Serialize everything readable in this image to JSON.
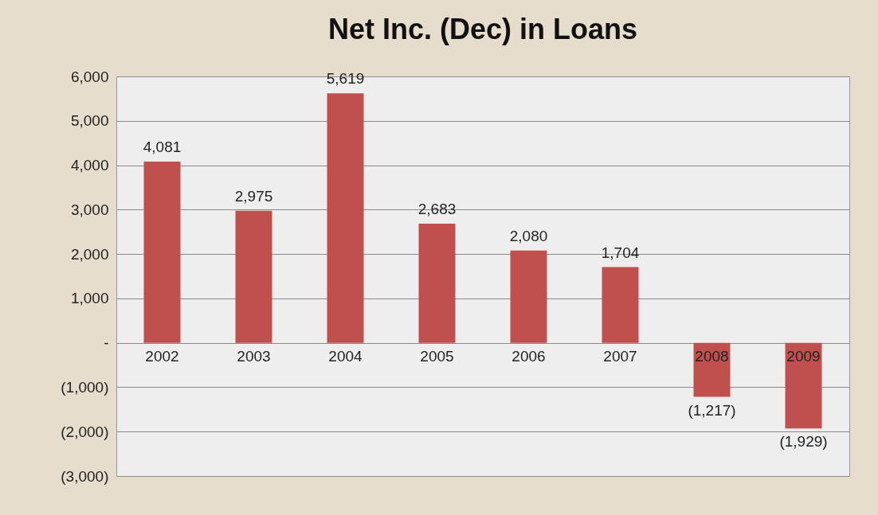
{
  "chart_data": {
    "type": "bar",
    "title": "Net Inc. (Dec) in Loans",
    "categories": [
      "2002",
      "2003",
      "2004",
      "2005",
      "2006",
      "2007",
      "2008",
      "2009"
    ],
    "values": [
      4081,
      2975,
      5619,
      2683,
      2080,
      1704,
      -1217,
      -1929
    ],
    "value_labels": [
      "4,081",
      "2,975",
      "5,619",
      "2,683",
      "2,080",
      "1,704",
      "(1,217)",
      "(1,929)"
    ],
    "color": "#c0504d",
    "ylim": [
      -3000,
      6000
    ],
    "yticks": [
      {
        "value": 6000,
        "label": "6,000"
      },
      {
        "value": 5000,
        "label": "5,000"
      },
      {
        "value": 4000,
        "label": "4,000"
      },
      {
        "value": 3000,
        "label": "3,000"
      },
      {
        "value": 2000,
        "label": "2,000"
      },
      {
        "value": 1000,
        "label": "1,000"
      },
      {
        "value": 0,
        "label": "-"
      },
      {
        "value": -1000,
        "label": "(1,000)"
      },
      {
        "value": -2000,
        "label": "(2,000)"
      },
      {
        "value": -3000,
        "label": "(3,000)"
      }
    ],
    "grid": true
  }
}
